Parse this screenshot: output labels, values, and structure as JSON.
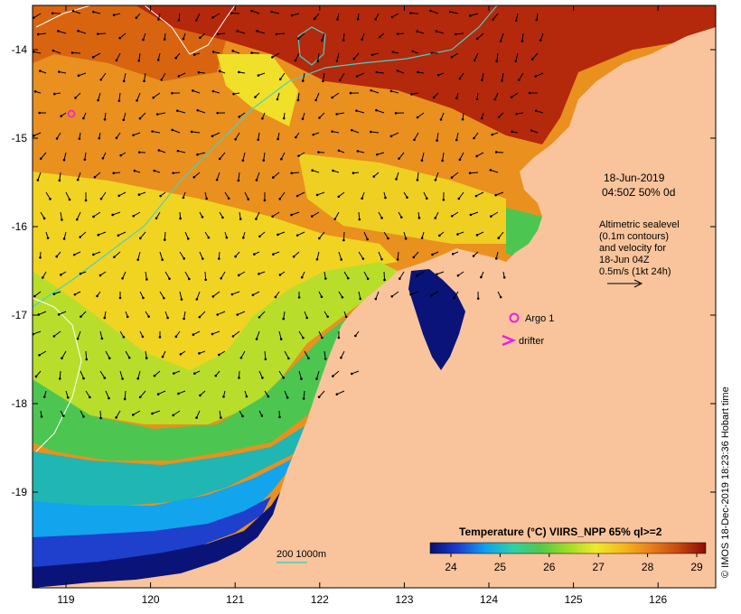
{
  "map": {
    "x_ticks": [
      "119",
      "120",
      "121",
      "122",
      "123",
      "124",
      "125",
      "126"
    ],
    "y_ticks": [
      "-14",
      "-15",
      "-16",
      "-17",
      "-18",
      "-19"
    ],
    "land_color": "#f9c49b",
    "contour_color": "#49d0c6"
  },
  "annotation": {
    "date": "18-Jun-2019",
    "time": "04:50Z  50% 0d",
    "altimetry_lines": [
      "Altimetric sealevel",
      "(0.1m contours)",
      "and velocity for",
      "18-Jun 04Z",
      "0.5m/s (1kt 24h)"
    ]
  },
  "legend": {
    "argo_label": "Argo 1",
    "drifter_label": "drifter",
    "argo_color": "#e61ee6",
    "drifter_color": "#e61ee6"
  },
  "isobath": {
    "label": "200  1000m"
  },
  "colorbar": {
    "title": "Temperature (°C) VIIRS_NPP 65% ql>=2",
    "ticks": [
      "24",
      "25",
      "26",
      "27",
      "28",
      "29"
    ],
    "colors": [
      "#08106e",
      "#1d3cd0",
      "#0fa0f0",
      "#2dd0a8",
      "#52c84b",
      "#a0dc28",
      "#eeea2a",
      "#f5b81e",
      "#e8801a",
      "#c84810",
      "#8c0a06"
    ]
  },
  "footer": {
    "imos": "© IMOS 18-Dec-2019 18:23:36 Hobart time"
  }
}
